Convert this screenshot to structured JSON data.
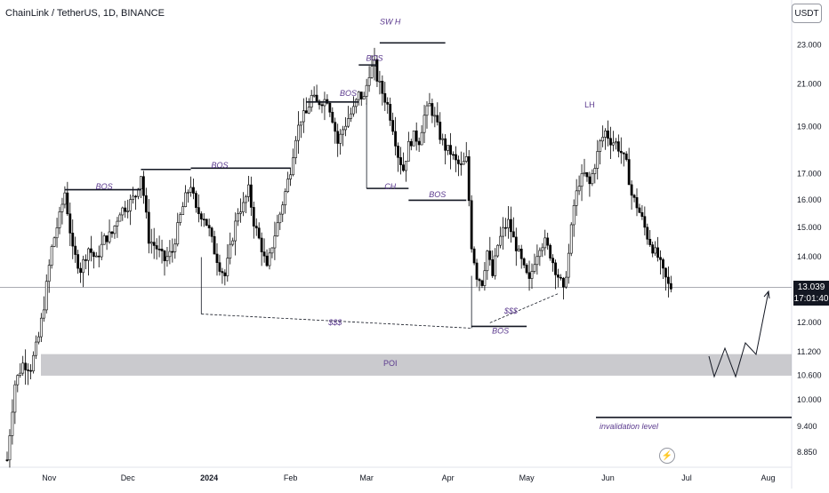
{
  "header": {
    "symbol": "ChainLink / TetherUS, 1D, BINANCE",
    "currency": "USDT"
  },
  "price_tag": {
    "price": "13.039",
    "countdown": "17:01:40"
  },
  "chart_data": {
    "type": "candlestick",
    "title": "ChainLink / TetherUS, 1D, BINANCE",
    "yscale": "log",
    "ylim": [
      8.55,
      25.6
    ],
    "y_ticks": [
      {
        "value": 23.0,
        "label": "23.000"
      },
      {
        "value": 21.0,
        "label": "21.000"
      },
      {
        "value": 19.0,
        "label": "19.000"
      },
      {
        "value": 17.0,
        "label": "17.000"
      },
      {
        "value": 16.0,
        "label": "16.000"
      },
      {
        "value": 15.0,
        "label": "15.000"
      },
      {
        "value": 14.0,
        "label": "14.000"
      },
      {
        "value": 12.0,
        "label": "12.000"
      },
      {
        "value": 11.2,
        "label": "11.200"
      },
      {
        "value": 10.6,
        "label": "10.600"
      },
      {
        "value": 10.0,
        "label": "10.000"
      },
      {
        "value": 9.4,
        "label": "9.400"
      },
      {
        "value": 8.85,
        "label": "8.850"
      }
    ],
    "x_ticks": [
      {
        "day": 16,
        "label": "Nov",
        "bold": false
      },
      {
        "day": 46,
        "label": "Dec",
        "bold": false
      },
      {
        "day": 77,
        "label": "2024",
        "bold": true
      },
      {
        "day": 108,
        "label": "Feb",
        "bold": false
      },
      {
        "day": 137,
        "label": "Mar",
        "bold": false
      },
      {
        "day": 168,
        "label": "Apr",
        "bold": false
      },
      {
        "day": 198,
        "label": "May",
        "bold": false
      },
      {
        "day": 229,
        "label": "Jun",
        "bold": false
      },
      {
        "day": 259,
        "label": "Jul",
        "bold": false
      },
      {
        "day": 290,
        "label": "Aug",
        "bold": false
      }
    ],
    "current_price": 13.039,
    "price_path": [
      [
        0,
        8.7
      ],
      [
        3,
        10.4
      ],
      [
        6,
        10.9
      ],
      [
        9,
        10.8
      ],
      [
        12,
        11.6
      ],
      [
        14,
        12.5
      ],
      [
        17,
        14.3
      ],
      [
        20,
        15.4
      ],
      [
        22,
        16.3
      ],
      [
        25,
        14.2
      ],
      [
        28,
        13.6
      ],
      [
        31,
        14.3
      ],
      [
        34,
        13.9
      ],
      [
        37,
        14.6
      ],
      [
        40,
        14.8
      ],
      [
        43,
        15.6
      ],
      [
        46,
        15.8
      ],
      [
        49,
        16.2
      ],
      [
        51,
        17.0
      ],
      [
        54,
        14.6
      ],
      [
        57,
        14.3
      ],
      [
        60,
        13.9
      ],
      [
        63,
        14.2
      ],
      [
        66,
        15.4
      ],
      [
        68,
        16.1
      ],
      [
        70,
        16.6
      ],
      [
        72,
        15.6
      ],
      [
        75,
        15.4
      ],
      [
        77,
        14.9
      ],
      [
        79,
        14.2
      ],
      [
        81,
        13.7
      ],
      [
        83,
        13.4
      ],
      [
        86,
        14.7
      ],
      [
        88,
        15.6
      ],
      [
        90,
        15.8
      ],
      [
        92,
        16.4
      ],
      [
        94,
        15.2
      ],
      [
        97,
        14.3
      ],
      [
        99,
        13.6
      ],
      [
        101,
        14.4
      ],
      [
        104,
        15.5
      ],
      [
        106,
        16.3
      ],
      [
        108,
        17.2
      ],
      [
        110,
        18.6
      ],
      [
        112,
        19.4
      ],
      [
        114,
        19.6
      ],
      [
        116,
        20.4
      ],
      [
        118,
        20.1
      ],
      [
        120,
        20.2
      ],
      [
        122,
        20.3
      ],
      [
        124,
        19.4
      ],
      [
        126,
        18.3
      ],
      [
        128,
        18.9
      ],
      [
        130,
        19.4
      ],
      [
        132,
        19.8
      ],
      [
        134,
        20.5
      ],
      [
        136,
        20.3
      ],
      [
        138,
        21.6
      ],
      [
        140,
        22.0
      ],
      [
        141,
        21.3
      ],
      [
        143,
        20.6
      ],
      [
        145,
        20.0
      ],
      [
        147,
        19.0
      ],
      [
        149,
        17.8
      ],
      [
        151,
        17.2
      ],
      [
        153,
        18.2
      ],
      [
        155,
        18.6
      ],
      [
        157,
        18.4
      ],
      [
        159,
        19.5
      ],
      [
        161,
        20.0
      ],
      [
        163,
        19.4
      ],
      [
        165,
        18.6
      ],
      [
        167,
        18.1
      ],
      [
        169,
        17.9
      ],
      [
        171,
        17.5
      ],
      [
        173,
        17.3
      ],
      [
        175,
        17.6
      ],
      [
        177,
        14.4
      ],
      [
        179,
        13.4
      ],
      [
        181,
        13.2
      ],
      [
        183,
        14.2
      ],
      [
        185,
        13.4
      ],
      [
        187,
        14.4
      ],
      [
        189,
        14.9
      ],
      [
        191,
        15.2
      ],
      [
        193,
        14.6
      ],
      [
        195,
        14.1
      ],
      [
        197,
        13.6
      ],
      [
        199,
        13.2
      ],
      [
        201,
        13.9
      ],
      [
        203,
        14.4
      ],
      [
        205,
        14.5
      ],
      [
        207,
        14.1
      ],
      [
        209,
        13.6
      ],
      [
        211,
        13.2
      ],
      [
        212,
        12.9
      ],
      [
        214,
        14.1
      ],
      [
        216,
        15.8
      ],
      [
        218,
        16.7
      ],
      [
        220,
        17.0
      ],
      [
        222,
        16.6
      ],
      [
        224,
        17.4
      ],
      [
        226,
        18.3
      ],
      [
        228,
        18.8
      ],
      [
        230,
        18.4
      ],
      [
        232,
        18.3
      ],
      [
        234,
        17.9
      ],
      [
        236,
        17.4
      ],
      [
        238,
        16.2
      ],
      [
        240,
        15.8
      ],
      [
        242,
        15.3
      ],
      [
        244,
        14.7
      ],
      [
        246,
        14.3
      ],
      [
        248,
        14.0
      ],
      [
        250,
        13.5
      ],
      [
        252,
        13.1
      ],
      [
        253,
        13.04
      ]
    ],
    "annotations": {
      "labels": [
        {
          "text": "BOS",
          "day": 37,
          "price": 16.5
        },
        {
          "text": "BOS",
          "day": 81,
          "price": 17.35
        },
        {
          "text": "BOS",
          "day": 130,
          "price": 20.55
        },
        {
          "text": "BOS",
          "day": 140,
          "price": 22.3
        },
        {
          "text": "SW H",
          "day": 146,
          "price": 24.3
        },
        {
          "text": "CH",
          "day": 146,
          "price": 16.5
        },
        {
          "text": "BOS",
          "day": 164,
          "price": 16.2
        },
        {
          "text": "BOS",
          "day": 188,
          "price": 11.76
        },
        {
          "text": "$$$",
          "day": 125,
          "price": 12.0
        },
        {
          "text": "$$$",
          "day": 192,
          "price": 12.32
        },
        {
          "text": "LH",
          "day": 222,
          "price": 20.0
        },
        {
          "text": "POI",
          "day": 146,
          "price": 10.9
        },
        {
          "text": "invalidation level",
          "day": 233,
          "price": 9.4
        }
      ],
      "poi_zone": {
        "low": 10.6,
        "high": 11.15
      },
      "invalidation_level": 9.61
    }
  }
}
